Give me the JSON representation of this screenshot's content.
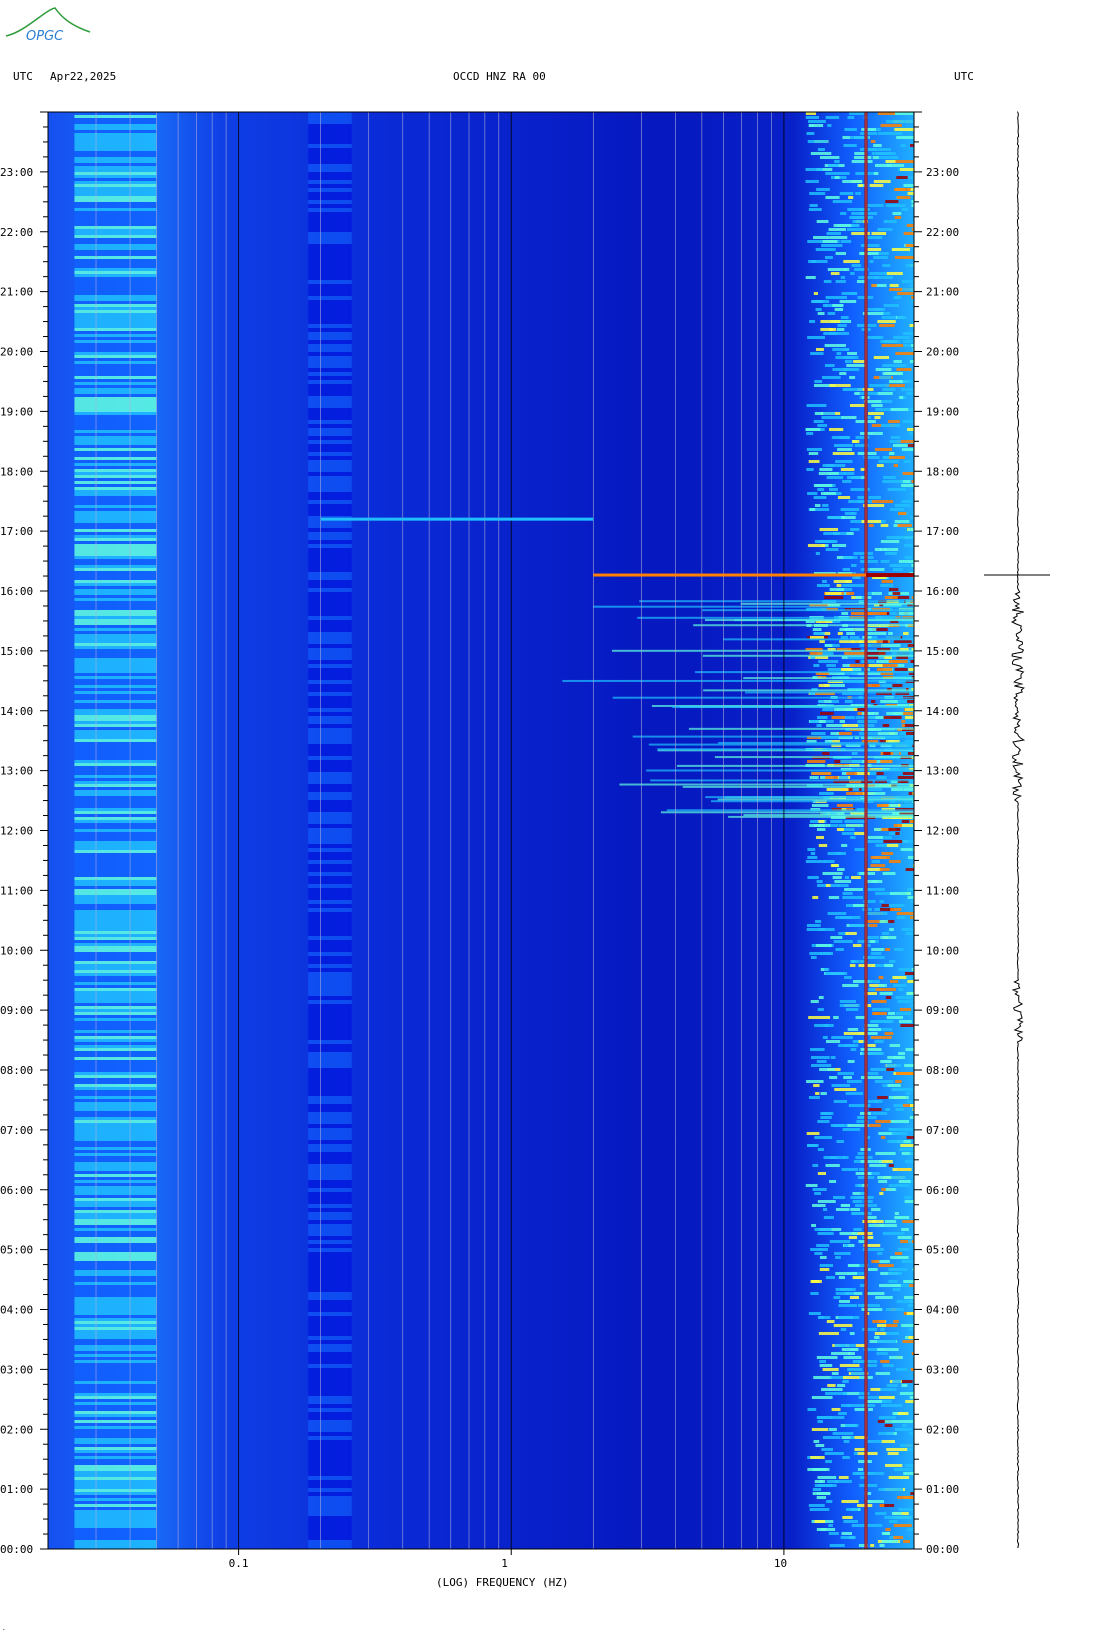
{
  "header": {
    "left_label": "UTC",
    "date": "Apr22,2025",
    "station": "OCCD HNZ RA 00",
    "right_label": "UTC"
  },
  "logo": {
    "text": "OPGC",
    "color": "#2b7fd4"
  },
  "chart_data": {
    "type": "heatmap",
    "subtype": "spectrogram",
    "title": "OCCD HNZ RA 00",
    "xlabel": "(LOG) FREQUENCY (HZ)",
    "x_scale": "log",
    "x_range_hz": [
      0.02,
      30
    ],
    "x_tick_labels": [
      "0.1",
      "1",
      "10"
    ],
    "x_tick_values": [
      0.1,
      1,
      10
    ],
    "y_range_hours": [
      0,
      24
    ],
    "y_tick_labels": [
      "00:00",
      "01:00",
      "02:00",
      "03:00",
      "04:00",
      "05:00",
      "06:00",
      "07:00",
      "08:00",
      "09:00",
      "10:00",
      "11:00",
      "12:00",
      "13:00",
      "14:00",
      "15:00",
      "16:00",
      "17:00",
      "18:00",
      "19:00",
      "20:00",
      "21:00",
      "22:00",
      "23:00"
    ],
    "grid": true,
    "colormap": [
      "#0000a0",
      "#0010e0",
      "#1060ff",
      "#20c0ff",
      "#60ffe0",
      "#ffff40",
      "#ff8000",
      "#a00000"
    ],
    "persistent_lines_hz": [
      20.0
    ],
    "events": [
      {
        "time": "16:16",
        "f_min_hz": 2,
        "f_max_hz": 30,
        "intensity": "high"
      },
      {
        "time": "17:12",
        "f_min_hz": 0.2,
        "f_max_hz": 2,
        "intensity": "low"
      }
    ],
    "active_band_hours": [
      12.0,
      16.0
    ]
  },
  "trace": {
    "label": "seismogram"
  }
}
